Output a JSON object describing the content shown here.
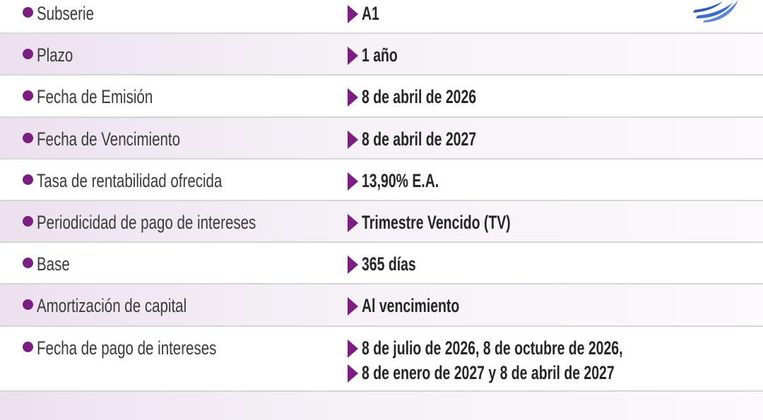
{
  "rows": [
    {
      "label": "Subserie",
      "value": [
        "A1"
      ]
    },
    {
      "label": "Plazo",
      "value": [
        "1 año"
      ]
    },
    {
      "label": "Fecha de Emisión",
      "value": [
        "8 de abril de 2026"
      ]
    },
    {
      "label": "Fecha de Vencimiento",
      "value": [
        "8 de abril de 2027"
      ]
    },
    {
      "label": "Tasa de rentabilidad ofrecida",
      "value": [
        "13,90% E.A."
      ]
    },
    {
      "label": "Periodicidad de pago de intereses",
      "value": [
        "Trimestre Vencido (TV)"
      ]
    },
    {
      "label": "Base",
      "value": [
        "365 días"
      ]
    },
    {
      "label": "Amortización de capital",
      "value": [
        "Al vencimiento"
      ]
    },
    {
      "label": "Fecha de pago de intereses",
      "value": [
        "8 de julio de 2026, 8 de octubre de 2026,",
        "8 de enero de 2027 y 8 de abril de 2027"
      ]
    }
  ]
}
